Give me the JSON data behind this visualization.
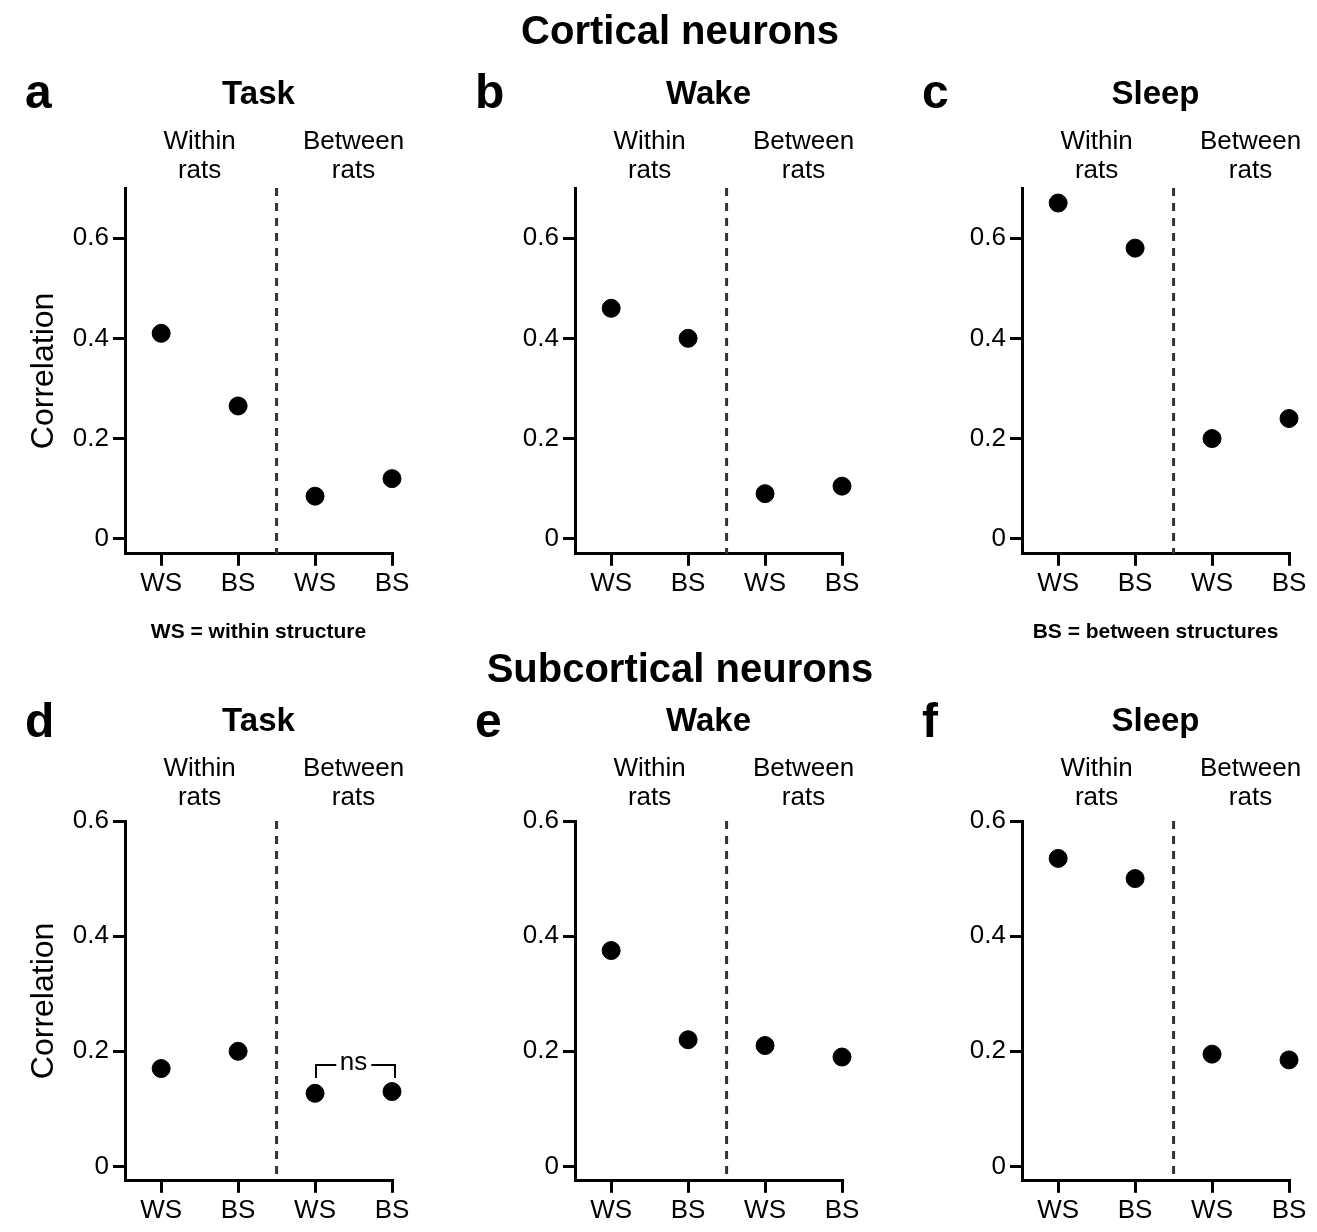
{
  "chart_data": [
    {
      "type": "scatter",
      "title": "Task",
      "ylabel": "Correlation",
      "categories": [
        "WS",
        "BS",
        "WS",
        "BS"
      ],
      "marker": "circle",
      "series": [
        {
          "color": "#000000",
          "values": [
            0.41,
            0.265,
            0.085,
            0.12
          ]
        }
      ],
      "ylim": [
        -0.03,
        0.7
      ],
      "yticks": [
        0,
        0.2,
        0.4,
        0.6
      ],
      "annotations": [
        "a",
        "Within rats",
        "Between rats",
        "WS = within structure"
      ]
    },
    {
      "type": "scatter",
      "title": "Wake",
      "categories": [
        "WS",
        "BS",
        "WS",
        "BS"
      ],
      "marker": "circle",
      "series": [
        {
          "color": "#000000",
          "values": [
            0.46,
            0.4,
            0.09,
            0.105
          ]
        }
      ],
      "ylim": [
        -0.03,
        0.7
      ],
      "yticks": [
        0,
        0.2,
        0.4,
        0.6
      ],
      "annotations": [
        "b",
        "Within rats",
        "Between rats",
        "Cortical neurons"
      ]
    },
    {
      "type": "scatter",
      "title": "Sleep",
      "categories": [
        "WS",
        "BS",
        "WS",
        "BS"
      ],
      "marker": "circle",
      "series": [
        {
          "color": "#000000",
          "values": [
            0.67,
            0.58,
            0.2,
            0.24
          ]
        }
      ],
      "ylim": [
        -0.03,
        0.7
      ],
      "yticks": [
        0,
        0.2,
        0.4,
        0.6
      ],
      "annotations": [
        "c",
        "Within rats",
        "Between rats",
        "BS = between structures"
      ]
    },
    {
      "type": "scatter",
      "title": "Task",
      "ylabel": "Correlation",
      "categories": [
        "WS",
        "BS",
        "WS",
        "BS"
      ],
      "marker": "circle",
      "series": [
        {
          "color": "#000000",
          "values": [
            0.17,
            0.2,
            0.127,
            0.13
          ]
        }
      ],
      "ylim": [
        -0.025,
        0.6
      ],
      "yticks": [
        0,
        0.2,
        0.4,
        0.6
      ],
      "annotations": [
        "d",
        "Within rats",
        "Between rats",
        "ns"
      ]
    },
    {
      "type": "scatter",
      "title": "Wake",
      "categories": [
        "WS",
        "BS",
        "WS",
        "BS"
      ],
      "marker": "circle",
      "series": [
        {
          "color": "#000000",
          "values": [
            0.375,
            0.22,
            0.21,
            0.19
          ]
        }
      ],
      "ylim": [
        -0.025,
        0.6
      ],
      "yticks": [
        0,
        0.2,
        0.4,
        0.6
      ],
      "annotations": [
        "e",
        "Within rats",
        "Between rats",
        "Subcortical neurons"
      ]
    },
    {
      "type": "scatter",
      "title": "Sleep",
      "categories": [
        "WS",
        "BS",
        "WS",
        "BS"
      ],
      "marker": "circle",
      "series": [
        {
          "color": "#000000",
          "values": [
            0.535,
            0.5,
            0.195,
            0.185
          ]
        }
      ],
      "ylim": [
        -0.025,
        0.6
      ],
      "yticks": [
        0,
        0.2,
        0.4,
        0.6
      ],
      "annotations": [
        "f",
        "Within rats",
        "Between rats"
      ]
    }
  ]
}
